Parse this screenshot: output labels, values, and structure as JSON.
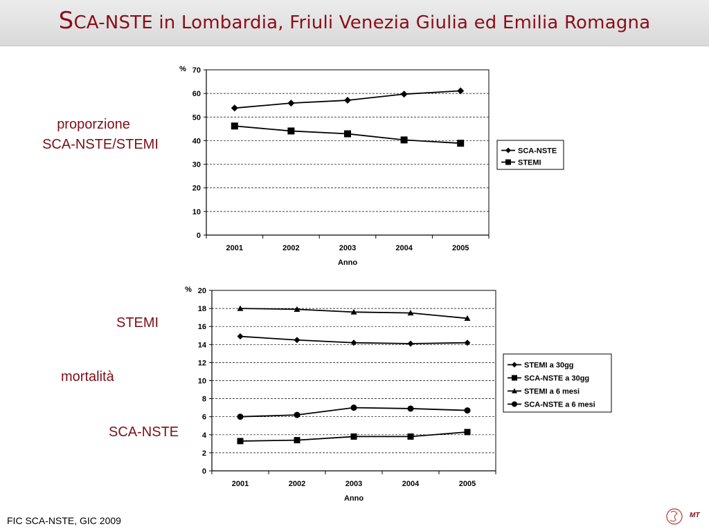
{
  "title_first_letter": "S",
  "title_rest": "CA-NSTE in Lombardia, Friuli Venezia Giulia ed Emilia Romagna",
  "labels": {
    "proporzione_line1": "proporzione",
    "proporzione_line2": "SCA-NSTE/STEMI",
    "stemi": "STEMI",
    "mortalita": "mortalità",
    "sca_nste": "SCA-NSTE"
  },
  "footer": "FIC SCA-NSTE, GIC 2009",
  "logo": {
    "text": "MT"
  },
  "colors": {
    "title": "#8b0d18",
    "labels": "#7a0f17"
  },
  "chart_data": [
    {
      "type": "line",
      "ylabel": "%",
      "xlabel": "Anno",
      "categories": [
        "2001",
        "2002",
        "2003",
        "2004",
        "2005"
      ],
      "ylim": [
        0,
        70
      ],
      "yticks": [
        0,
        10,
        20,
        30,
        40,
        50,
        60,
        70
      ],
      "grid": true,
      "legend_placement": "right",
      "series": [
        {
          "name": "SCA-NSTE",
          "marker": "diamond",
          "values": [
            53.8,
            55.9,
            57.1,
            59.7,
            61.1
          ]
        },
        {
          "name": "STEMI",
          "marker": "square",
          "values": [
            46.2,
            44.1,
            42.9,
            40.3,
            38.9
          ]
        }
      ]
    },
    {
      "type": "line",
      "ylabel": "%",
      "xlabel": "Anno",
      "categories": [
        "2001",
        "2002",
        "2003",
        "2004",
        "2005"
      ],
      "ylim": [
        0,
        20
      ],
      "yticks": [
        0,
        2,
        4,
        6,
        8,
        10,
        12,
        14,
        16,
        18,
        20
      ],
      "grid": true,
      "legend_placement": "right",
      "series": [
        {
          "name": "STEMI a 30gg",
          "marker": "diamond",
          "values": [
            14.9,
            14.5,
            14.2,
            14.1,
            14.2
          ]
        },
        {
          "name": "SCA-NSTE a 30gg",
          "marker": "square",
          "values": [
            3.3,
            3.4,
            3.8,
            3.8,
            4.3
          ]
        },
        {
          "name": "STEMI a 6 mesi",
          "marker": "triangle",
          "values": [
            18.0,
            17.9,
            17.6,
            17.5,
            16.9
          ]
        },
        {
          "name": "SCA-NSTE a 6 mesi",
          "marker": "circle",
          "values": [
            6.0,
            6.2,
            7.0,
            6.9,
            6.7
          ]
        }
      ]
    }
  ]
}
